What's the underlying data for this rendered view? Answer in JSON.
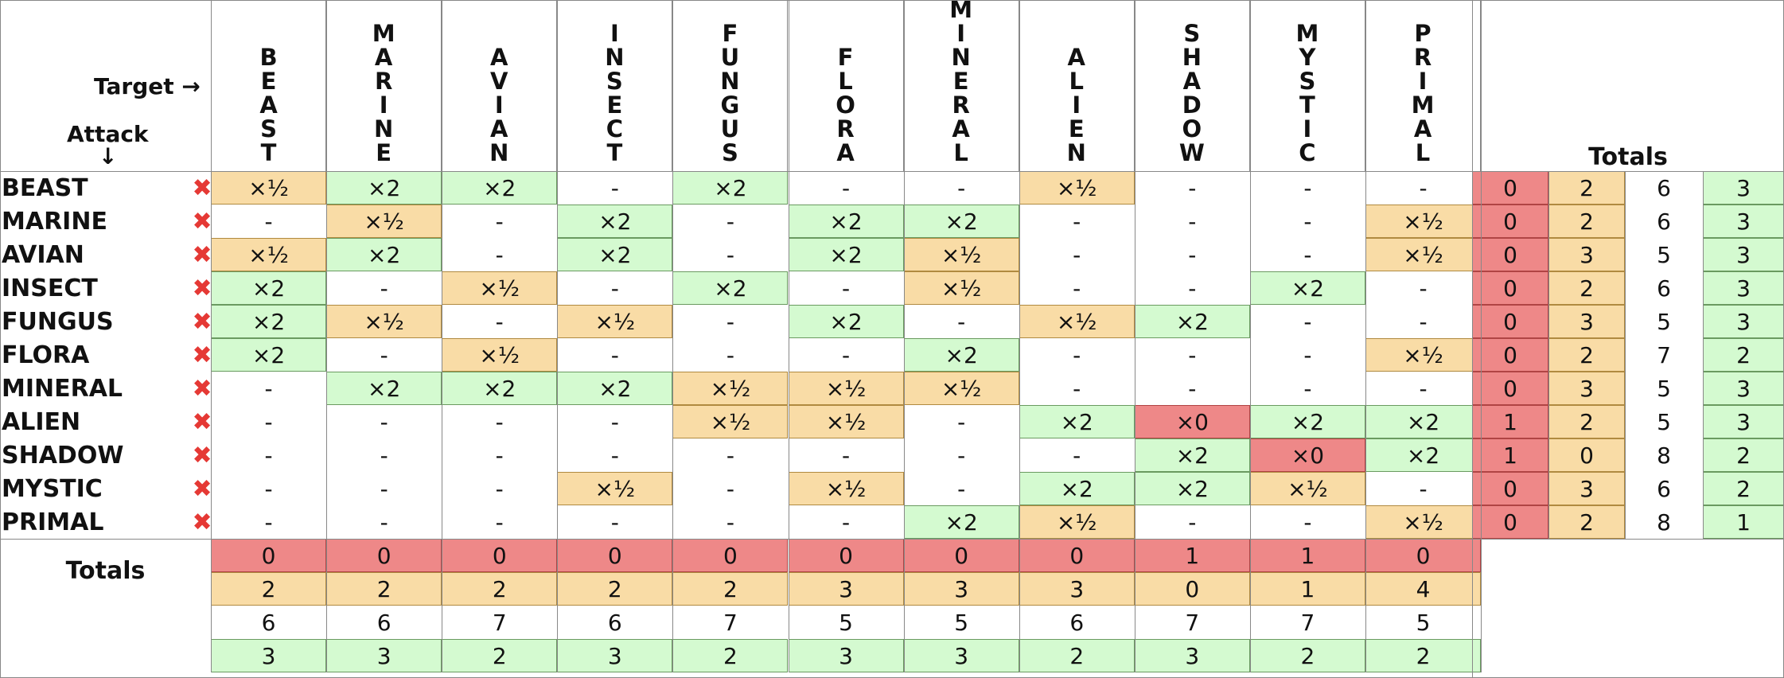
{
  "corner": {
    "target_label": "Target →",
    "attack_label": "Attack",
    "attack_arrow": "↓"
  },
  "columns": [
    "BEAST",
    "MARINE",
    "AVIAN",
    "INSECT",
    "FUNGUS",
    "FLORA",
    "MINERAL",
    "ALIEN",
    "SHADOW",
    "MYSTIC",
    "PRIMAL"
  ],
  "rows": [
    {
      "name": "BEAST",
      "mark": "✖",
      "cells": [
        "×½",
        "×2",
        "×2",
        "-",
        "×2",
        "-",
        "-",
        "×½",
        "-",
        "-",
        "-"
      ],
      "totals": [
        "0",
        "2",
        "6",
        "3"
      ]
    },
    {
      "name": "MARINE",
      "mark": "✖",
      "cells": [
        "-",
        "×½",
        "-",
        "×2",
        "-",
        "×2",
        "×2",
        "-",
        "-",
        "-",
        "×½"
      ],
      "totals": [
        "0",
        "2",
        "6",
        "3"
      ]
    },
    {
      "name": "AVIAN",
      "mark": "✖",
      "cells": [
        "×½",
        "×2",
        "-",
        "×2",
        "-",
        "×2",
        "×½",
        "-",
        "-",
        "-",
        "×½"
      ],
      "totals": [
        "0",
        "3",
        "5",
        "3"
      ]
    },
    {
      "name": "INSECT",
      "mark": "✖",
      "cells": [
        "×2",
        "-",
        "×½",
        "-",
        "×2",
        "-",
        "×½",
        "-",
        "-",
        "×2",
        "-"
      ],
      "totals": [
        "0",
        "2",
        "6",
        "3"
      ]
    },
    {
      "name": "FUNGUS",
      "mark": "✖",
      "cells": [
        "×2",
        "×½",
        "-",
        "×½",
        "-",
        "×2",
        "-",
        "×½",
        "×2",
        "-",
        "-"
      ],
      "totals": [
        "0",
        "3",
        "5",
        "3"
      ]
    },
    {
      "name": "FLORA",
      "mark": "✖",
      "cells": [
        "×2",
        "-",
        "×½",
        "-",
        "-",
        "-",
        "×2",
        "-",
        "-",
        "-",
        "×½"
      ],
      "totals": [
        "0",
        "2",
        "7",
        "2"
      ]
    },
    {
      "name": "MINERAL",
      "mark": "✖",
      "cells": [
        "-",
        "×2",
        "×2",
        "×2",
        "×½",
        "×½",
        "×½",
        "-",
        "-",
        "-",
        "-"
      ],
      "totals": [
        "0",
        "3",
        "5",
        "3"
      ]
    },
    {
      "name": "ALIEN",
      "mark": "✖",
      "cells": [
        "-",
        "-",
        "-",
        "-",
        "×½",
        "×½",
        "-",
        "×2",
        "×0",
        "×2",
        "×2"
      ],
      "totals": [
        "1",
        "2",
        "5",
        "3"
      ]
    },
    {
      "name": "SHADOW",
      "mark": "✖",
      "cells": [
        "-",
        "-",
        "-",
        "-",
        "-",
        "-",
        "-",
        "-",
        "×2",
        "×0",
        "×2"
      ],
      "totals": [
        "1",
        "0",
        "8",
        "2"
      ]
    },
    {
      "name": "MYSTIC",
      "mark": "✖",
      "cells": [
        "-",
        "-",
        "-",
        "×½",
        "-",
        "×½",
        "-",
        "×2",
        "×2",
        "×½",
        "-"
      ],
      "totals": [
        "0",
        "3",
        "6",
        "2"
      ]
    },
    {
      "name": "PRIMAL",
      "mark": "✖",
      "cells": [
        "-",
        "-",
        "-",
        "-",
        "-",
        "-",
        "×2",
        "×½",
        "-",
        "-",
        "×½"
      ],
      "totals": [
        "0",
        "2",
        "8",
        "1"
      ]
    }
  ],
  "totals_label": "Totals",
  "column_totals": [
    [
      "0",
      "0",
      "0",
      "0",
      "0",
      "0",
      "0",
      "0",
      "1",
      "1",
      "0"
    ],
    [
      "2",
      "2",
      "2",
      "2",
      "2",
      "3",
      "3",
      "3",
      "0",
      "1",
      "4"
    ],
    [
      "6",
      "6",
      "7",
      "6",
      "7",
      "5",
      "5",
      "6",
      "7",
      "7",
      "5"
    ],
    [
      "3",
      "3",
      "2",
      "3",
      "2",
      "3",
      "3",
      "2",
      "3",
      "2",
      "2"
    ]
  ],
  "colors": {
    "double": "#d4fad0",
    "half": "#f9dca6",
    "zero": "#ee8888",
    "neutral": "#ffffff",
    "double_border": "#6a9a60",
    "half_border": "#b08a40",
    "zero_border": "#b04444"
  }
}
